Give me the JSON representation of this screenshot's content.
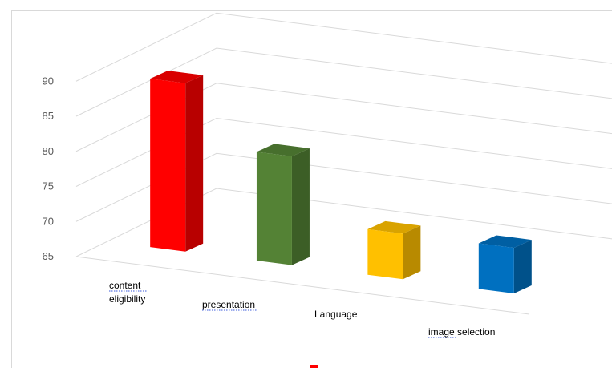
{
  "chart_data": {
    "type": "bar",
    "categories": [
      "content eligibility",
      "presentation",
      "Language",
      "image selection"
    ],
    "category_lines": [
      [
        "content",
        "eligibility"
      ],
      [
        "presentation"
      ],
      [
        "Language"
      ],
      [
        "image selection"
      ]
    ],
    "values": [
      89,
      80.5,
      71.5,
      71.5
    ],
    "colors": [
      "#ff0000",
      "#548235",
      "#ffc000",
      "#0070c0"
    ],
    "yticks": [
      65,
      70,
      75,
      80,
      85,
      90
    ],
    "ylim": [
      65,
      90
    ],
    "title": "",
    "xlabel": "",
    "ylabel": "",
    "grid": true,
    "style": "3d-column"
  }
}
